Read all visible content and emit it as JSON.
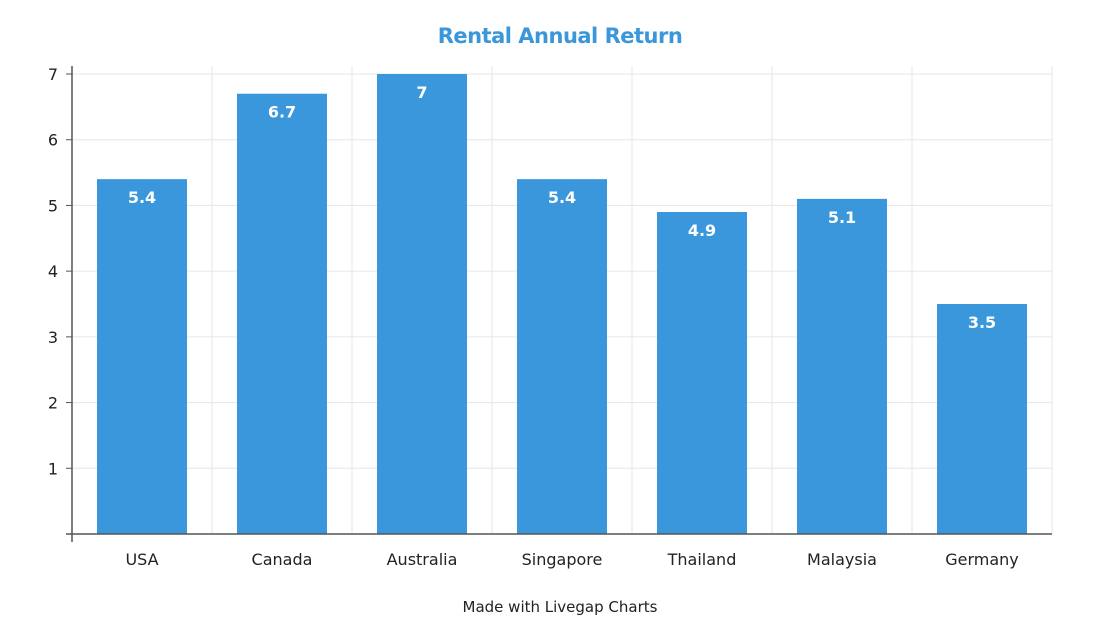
{
  "chart_data": {
    "type": "bar",
    "title": "Rental Annual Return",
    "xlabel": "",
    "ylabel": "",
    "categories": [
      "USA",
      "Canada",
      "Australia",
      "Singapore",
      "Thailand",
      "Malaysia",
      "Germany"
    ],
    "values": [
      5.4,
      6.7,
      7,
      5.4,
      4.9,
      5.1,
      3.5
    ],
    "data_labels": [
      "5.4",
      "6.7",
      "7",
      "5.4",
      "4.9",
      "5.1",
      "3.5"
    ],
    "ylim": [
      0,
      7
    ],
    "yticks": [
      "1",
      "2",
      "3",
      "4",
      "5",
      "6",
      "7"
    ],
    "grid": true,
    "legend": "none",
    "bar_color": "#3a97db",
    "title_color": "#3a97d9"
  },
  "footer": {
    "note": "Made with Livegap Charts"
  }
}
